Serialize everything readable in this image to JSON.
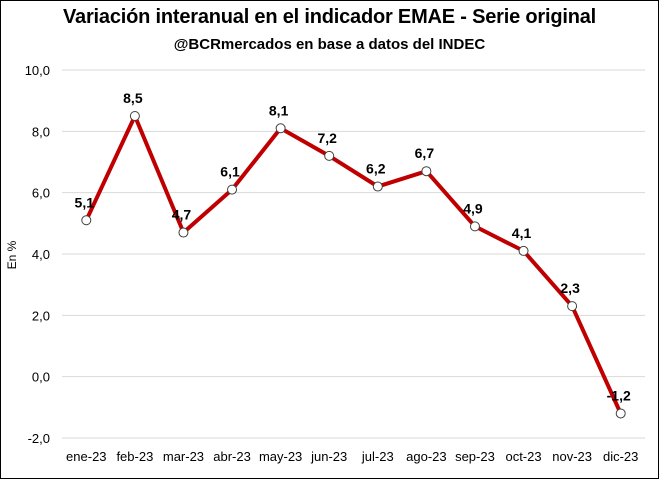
{
  "chart_data": {
    "type": "line",
    "title": "Variación interanual en el indicador EMAE - Serie original",
    "subtitle": "@BCRmercados en base a datos del INDEC",
    "xlabel": "",
    "ylabel": "En %",
    "categories": [
      "ene-23",
      "feb-23",
      "mar-23",
      "abr-23",
      "may-23",
      "jun-23",
      "jul-23",
      "ago-23",
      "sep-23",
      "oct-23",
      "nov-23",
      "dic-23"
    ],
    "series": [
      {
        "values": [
          5.1,
          8.5,
          4.7,
          6.1,
          8.1,
          7.2,
          6.2,
          6.7,
          4.9,
          4.1,
          2.3,
          -1.2
        ],
        "labels": [
          "5,1",
          "8,5",
          "4,7",
          "6,1",
          "8,1",
          "7,2",
          "6,2",
          "6,7",
          "4,9",
          "4,1",
          "2,3",
          "-1,2"
        ]
      }
    ],
    "ylim": [
      -2.0,
      10.0
    ],
    "yticks": [
      -2.0,
      0.0,
      2.0,
      4.0,
      6.0,
      8.0,
      10.0
    ],
    "ytick_labels": [
      "-2,0",
      "0,0",
      "2,0",
      "4,0",
      "6,0",
      "8,0",
      "10,0"
    ],
    "grid": "horizontal",
    "legend": "none",
    "colors": {
      "line": "#c00000",
      "marker_fill": "#ffffff",
      "marker_edge": "#404040",
      "grid": "#d9d9d9"
    }
  }
}
